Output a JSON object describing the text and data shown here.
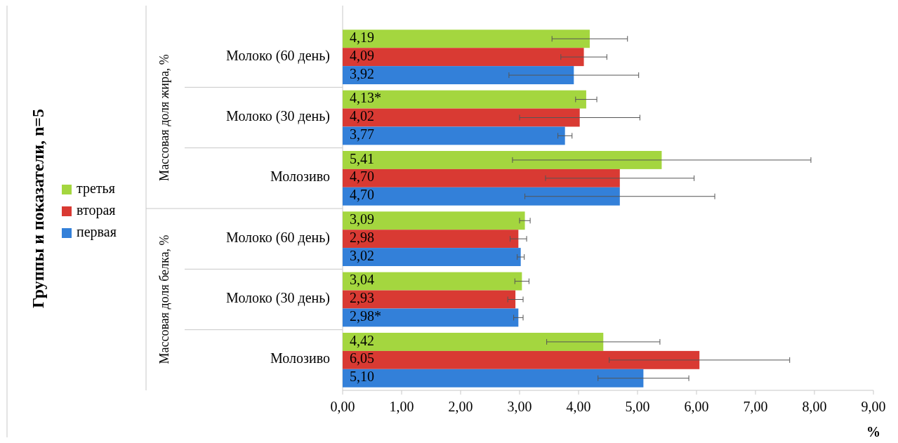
{
  "chart_data": {
    "type": "bar",
    "orientation": "horizontal",
    "xlabel": "%",
    "categories": [
      "Молоко (60 день)",
      "Молоко (30 день)",
      "Молозиво",
      "Молоко (60 день)",
      "Молоко (30 день)",
      "Молозиво"
    ],
    "annotations": [
      "Группы и показатели, n=5",
      "Массовая доля жира, %",
      "Массовая доля белка, %"
    ],
    "series": [
      {
        "name": "третья",
        "color": "#a4d63f",
        "values": [
          4.19,
          4.13,
          5.41,
          3.09,
          3.04,
          4.42
        ],
        "errors": [
          0.64,
          0.18,
          2.53,
          0.09,
          0.12,
          0.96
        ],
        "value_labels": [
          "4,19",
          "4,13*",
          "5,41",
          "3,09",
          "3,04",
          "4,42"
        ]
      },
      {
        "name": "вторая",
        "color": "#d93a33",
        "values": [
          4.09,
          4.02,
          4.7,
          2.98,
          2.93,
          6.05
        ],
        "errors": [
          0.39,
          1.02,
          1.26,
          0.14,
          0.13,
          1.53
        ],
        "value_labels": [
          "4,09",
          "4,02",
          "4,70",
          "2,98",
          "2,93",
          "6,05"
        ]
      },
      {
        "name": "первая",
        "color": "#3380d9",
        "values": [
          3.92,
          3.77,
          4.7,
          3.02,
          2.98,
          5.1
        ],
        "errors": [
          1.1,
          0.12,
          1.61,
          0.06,
          0.08,
          0.77
        ],
        "value_labels": [
          "3,92",
          "3,77",
          "4,70",
          "3,02",
          "2,98*",
          "5,10"
        ]
      }
    ],
    "xlim": [
      0,
      9
    ],
    "xticks": [
      {
        "value": 0,
        "label": "0,00"
      },
      {
        "value": 1,
        "label": "1,00"
      },
      {
        "value": 2,
        "label": "2,00"
      },
      {
        "value": 3,
        "label": "3,00"
      },
      {
        "value": 4,
        "label": "4,00"
      },
      {
        "value": 5,
        "label": "5,00"
      },
      {
        "value": 6,
        "label": "6,00"
      },
      {
        "value": 7,
        "label": "7,00"
      },
      {
        "value": 8,
        "label": "8,00"
      },
      {
        "value": 9,
        "label": "9,00"
      }
    ],
    "legend": "left"
  }
}
